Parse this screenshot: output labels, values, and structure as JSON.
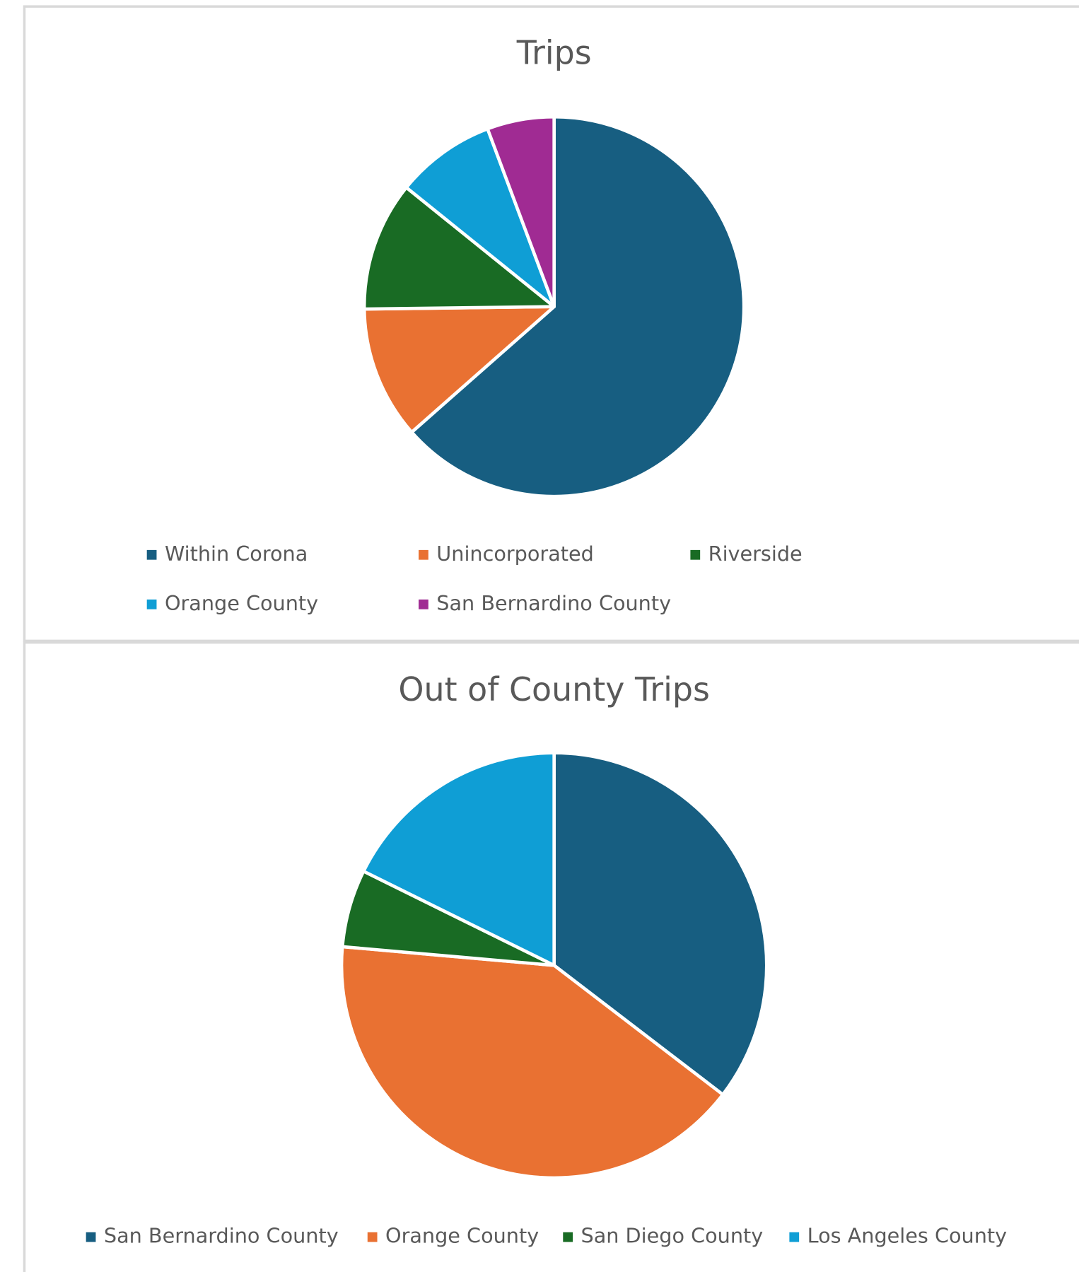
{
  "chart_data": [
    {
      "type": "pie",
      "title": "Trips",
      "categories": [
        "Within Corona",
        "Unincorporated",
        "Riverside",
        "Orange County",
        "San Bernardino County"
      ],
      "values": [
        63.5,
        11.3,
        11.0,
        8.5,
        5.7
      ],
      "colors": [
        "#175e81",
        "#e97132",
        "#196b24",
        "#0f9ed5",
        "#a02b93"
      ]
    },
    {
      "type": "pie",
      "title": "Out of County Trips",
      "categories": [
        "San Bernardino County",
        "Orange County",
        "San Diego County",
        "Los Angeles County"
      ],
      "values": [
        35.4,
        41.0,
        5.9,
        17.7
      ],
      "colors": [
        "#175e81",
        "#e97132",
        "#196b24",
        "#0f9ed5"
      ]
    }
  ]
}
